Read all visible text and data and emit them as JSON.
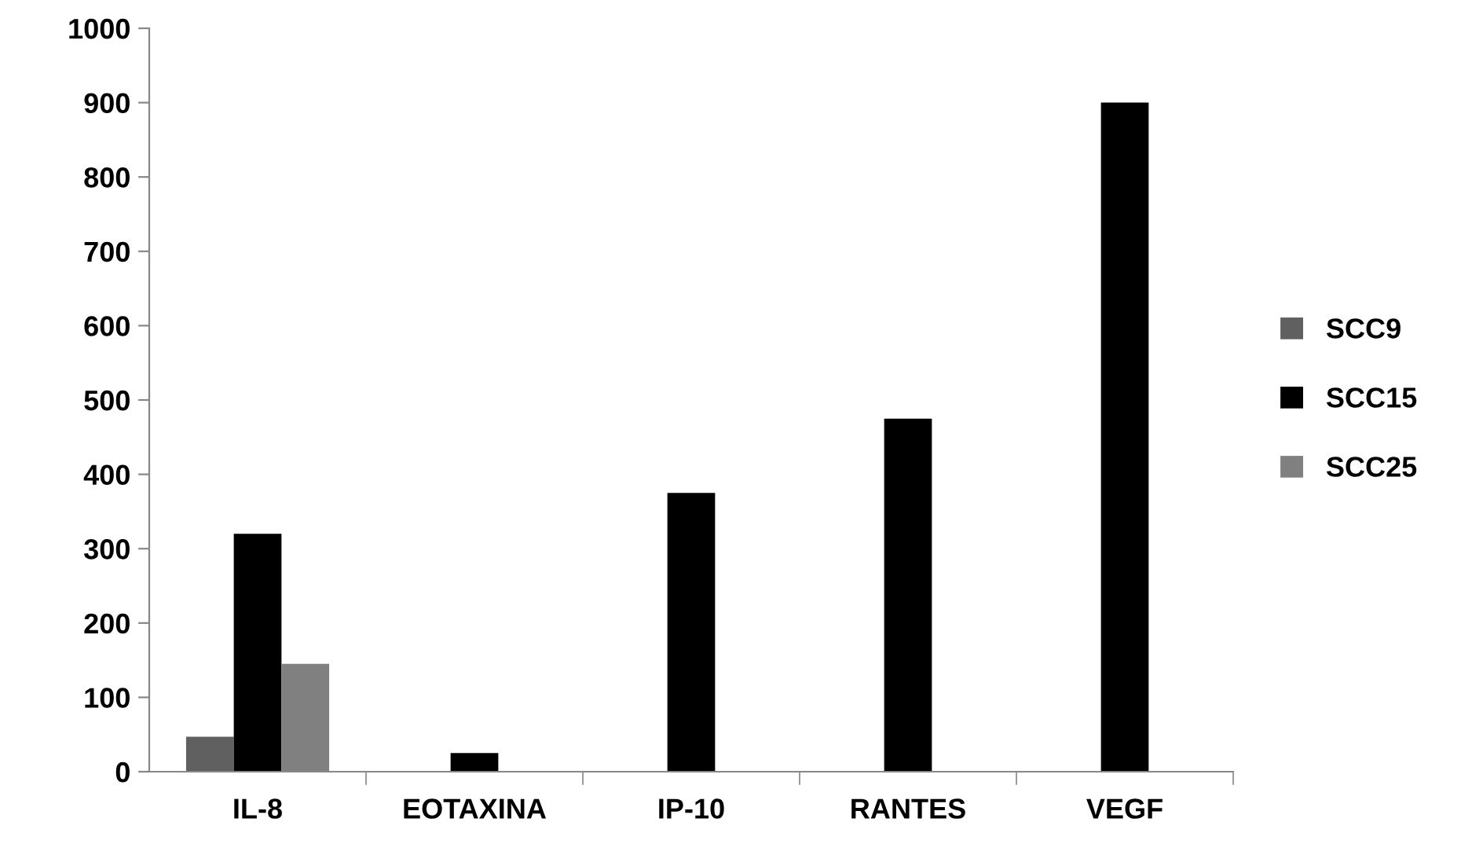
{
  "chart_data": {
    "type": "bar",
    "categories": [
      "IL-8",
      "EOTAXINA",
      "IP-10",
      "RANTES",
      "VEGF"
    ],
    "series": [
      {
        "name": "SCC9",
        "color": "#606060",
        "values": [
          47,
          0,
          0,
          null,
          0
        ]
      },
      {
        "name": "SCC15",
        "color": "#000000",
        "values": [
          320,
          25,
          375,
          475,
          900
        ]
      },
      {
        "name": "SCC25",
        "color": "#808080",
        "values": [
          145,
          0,
          0,
          null,
          0
        ]
      }
    ],
    "ylim": [
      0,
      1000
    ],
    "yticks": [
      0,
      100,
      200,
      300,
      400,
      500,
      600,
      700,
      800,
      900,
      1000
    ],
    "grid": false,
    "legend": "right"
  }
}
